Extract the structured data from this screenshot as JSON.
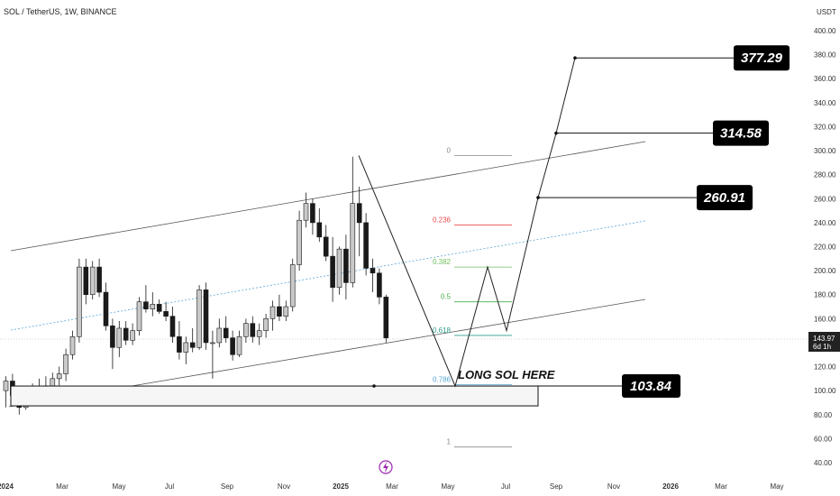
{
  "header": {
    "symbol": "SOL / TetherUS, 1W, BINANCE",
    "currency": "USDT"
  },
  "chart_data": {
    "type": "candlestick",
    "title": "SOL / TetherUS, 1W, BINANCE",
    "y_unit": "USDT",
    "ylim": [
      40,
      400
    ],
    "y_ticks": [
      40,
      60,
      80,
      100,
      120,
      140,
      160,
      180,
      200,
      220,
      240,
      260,
      280,
      300,
      320,
      340,
      360,
      380,
      400
    ],
    "x_ticks": [
      "2024",
      "Mar",
      "May",
      "Jul",
      "Sep",
      "Nov",
      "2025",
      "Mar",
      "May",
      "Jul",
      "Sep",
      "Nov",
      "2026",
      "Mar",
      "May"
    ],
    "current_price": "143.97",
    "countdown": "6d 1h",
    "candles": [
      {
        "o": 100,
        "h": 112,
        "l": 86,
        "c": 108
      },
      {
        "o": 108,
        "h": 114,
        "l": 92,
        "c": 96
      },
      {
        "o": 96,
        "h": 102,
        "l": 80,
        "c": 86
      },
      {
        "o": 86,
        "h": 100,
        "l": 84,
        "c": 98
      },
      {
        "o": 98,
        "h": 106,
        "l": 92,
        "c": 102
      },
      {
        "o": 102,
        "h": 110,
        "l": 95,
        "c": 100
      },
      {
        "o": 100,
        "h": 112,
        "l": 96,
        "c": 104
      },
      {
        "o": 104,
        "h": 115,
        "l": 99,
        "c": 110
      },
      {
        "o": 110,
        "h": 120,
        "l": 104,
        "c": 114
      },
      {
        "o": 114,
        "h": 135,
        "l": 108,
        "c": 130
      },
      {
        "o": 130,
        "h": 150,
        "l": 126,
        "c": 145
      },
      {
        "o": 145,
        "h": 210,
        "l": 140,
        "c": 203
      },
      {
        "o": 203,
        "h": 210,
        "l": 172,
        "c": 180
      },
      {
        "o": 180,
        "h": 208,
        "l": 176,
        "c": 203
      },
      {
        "o": 203,
        "h": 210,
        "l": 178,
        "c": 182
      },
      {
        "o": 182,
        "h": 190,
        "l": 150,
        "c": 154
      },
      {
        "o": 154,
        "h": 160,
        "l": 118,
        "c": 136
      },
      {
        "o": 136,
        "h": 158,
        "l": 128,
        "c": 152
      },
      {
        "o": 152,
        "h": 158,
        "l": 138,
        "c": 142
      },
      {
        "o": 142,
        "h": 156,
        "l": 138,
        "c": 150
      },
      {
        "o": 150,
        "h": 178,
        "l": 146,
        "c": 174
      },
      {
        "o": 174,
        "h": 188,
        "l": 165,
        "c": 168
      },
      {
        "o": 168,
        "h": 182,
        "l": 162,
        "c": 172
      },
      {
        "o": 172,
        "h": 176,
        "l": 164,
        "c": 166
      },
      {
        "o": 166,
        "h": 174,
        "l": 158,
        "c": 162
      },
      {
        "o": 162,
        "h": 170,
        "l": 140,
        "c": 145
      },
      {
        "o": 145,
        "h": 158,
        "l": 126,
        "c": 132
      },
      {
        "o": 132,
        "h": 145,
        "l": 122,
        "c": 140
      },
      {
        "o": 140,
        "h": 152,
        "l": 132,
        "c": 136
      },
      {
        "o": 136,
        "h": 188,
        "l": 134,
        "c": 184
      },
      {
        "o": 184,
        "h": 190,
        "l": 134,
        "c": 140
      },
      {
        "o": 140,
        "h": 150,
        "l": 110,
        "c": 140
      },
      {
        "o": 140,
        "h": 160,
        "l": 136,
        "c": 152
      },
      {
        "o": 152,
        "h": 162,
        "l": 140,
        "c": 144
      },
      {
        "o": 144,
        "h": 150,
        "l": 125,
        "c": 130
      },
      {
        "o": 130,
        "h": 150,
        "l": 128,
        "c": 145
      },
      {
        "o": 145,
        "h": 160,
        "l": 140,
        "c": 156
      },
      {
        "o": 156,
        "h": 162,
        "l": 140,
        "c": 145
      },
      {
        "o": 145,
        "h": 156,
        "l": 138,
        "c": 150
      },
      {
        "o": 150,
        "h": 164,
        "l": 144,
        "c": 160
      },
      {
        "o": 160,
        "h": 175,
        "l": 150,
        "c": 170
      },
      {
        "o": 170,
        "h": 180,
        "l": 158,
        "c": 162
      },
      {
        "o": 162,
        "h": 175,
        "l": 158,
        "c": 170
      },
      {
        "o": 170,
        "h": 210,
        "l": 166,
        "c": 205
      },
      {
        "o": 205,
        "h": 250,
        "l": 200,
        "c": 242
      },
      {
        "o": 242,
        "h": 265,
        "l": 236,
        "c": 256
      },
      {
        "o": 256,
        "h": 260,
        "l": 230,
        "c": 240
      },
      {
        "o": 240,
        "h": 252,
        "l": 224,
        "c": 228
      },
      {
        "o": 228,
        "h": 238,
        "l": 208,
        "c": 212
      },
      {
        "o": 212,
        "h": 228,
        "l": 174,
        "c": 186
      },
      {
        "o": 186,
        "h": 220,
        "l": 180,
        "c": 218
      },
      {
        "o": 218,
        "h": 230,
        "l": 176,
        "c": 190
      },
      {
        "o": 190,
        "h": 295,
        "l": 186,
        "c": 256
      },
      {
        "o": 256,
        "h": 270,
        "l": 212,
        "c": 240
      },
      {
        "o": 240,
        "h": 248,
        "l": 196,
        "c": 202
      },
      {
        "o": 202,
        "h": 210,
        "l": 182,
        "c": 198
      },
      {
        "o": 198,
        "h": 202,
        "l": 172,
        "c": 178
      },
      {
        "o": 178,
        "h": 180,
        "l": 140,
        "c": 143.97
      }
    ],
    "fib_levels": [
      {
        "label": "0",
        "value": 296,
        "color": "#888888"
      },
      {
        "label": "0.236",
        "value": 238,
        "color": "#e84d4d"
      },
      {
        "label": "0.382",
        "value": 203,
        "color": "#6fbf5b"
      },
      {
        "label": "0.5",
        "value": 174,
        "color": "#4caf50"
      },
      {
        "label": "0.618",
        "value": 146,
        "color": "#2e9e8c"
      },
      {
        "label": "0.786",
        "value": 105,
        "color": "#5aa7d6"
      },
      {
        "label": "1",
        "value": 53,
        "color": "#888888"
      }
    ],
    "targets": [
      "377.29",
      "314.58",
      "260.91"
    ],
    "entry": {
      "price": "103.84",
      "label": "LONG SOL HERE"
    },
    "colors": {
      "bull_candle": "#c9c9c9",
      "bear_candle": "#1a1a1a",
      "channel": "#555555",
      "midline": "#5aa7d6",
      "label_bg": "#000000",
      "price_tag_bg": "#222222"
    }
  }
}
